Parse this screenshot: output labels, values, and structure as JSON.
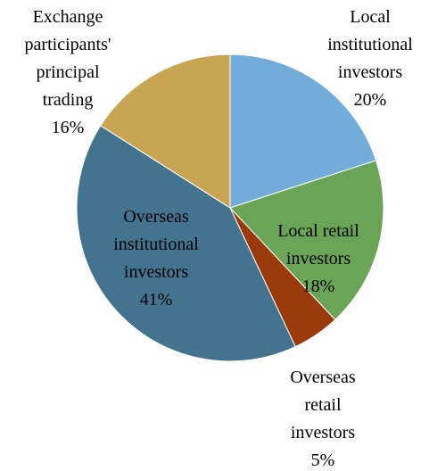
{
  "chart_data": {
    "type": "pie",
    "categories": [
      "Local\ninstitutional\ninvestors",
      "Local retail\ninvestors",
      "Overseas\nretail\ninvestors",
      "Overseas\ninstitutional\ninvestors",
      "Exchange\nparticipants'\nprincipal\ntrading"
    ],
    "values": [
      20,
      18,
      5,
      41,
      16
    ],
    "value_labels": [
      "20%",
      "18%",
      "5%",
      "41%",
      "16%"
    ],
    "colors": [
      "#72acd8",
      "#6aa456",
      "#9a3a0a",
      "#44738f",
      "#c8a552"
    ]
  }
}
